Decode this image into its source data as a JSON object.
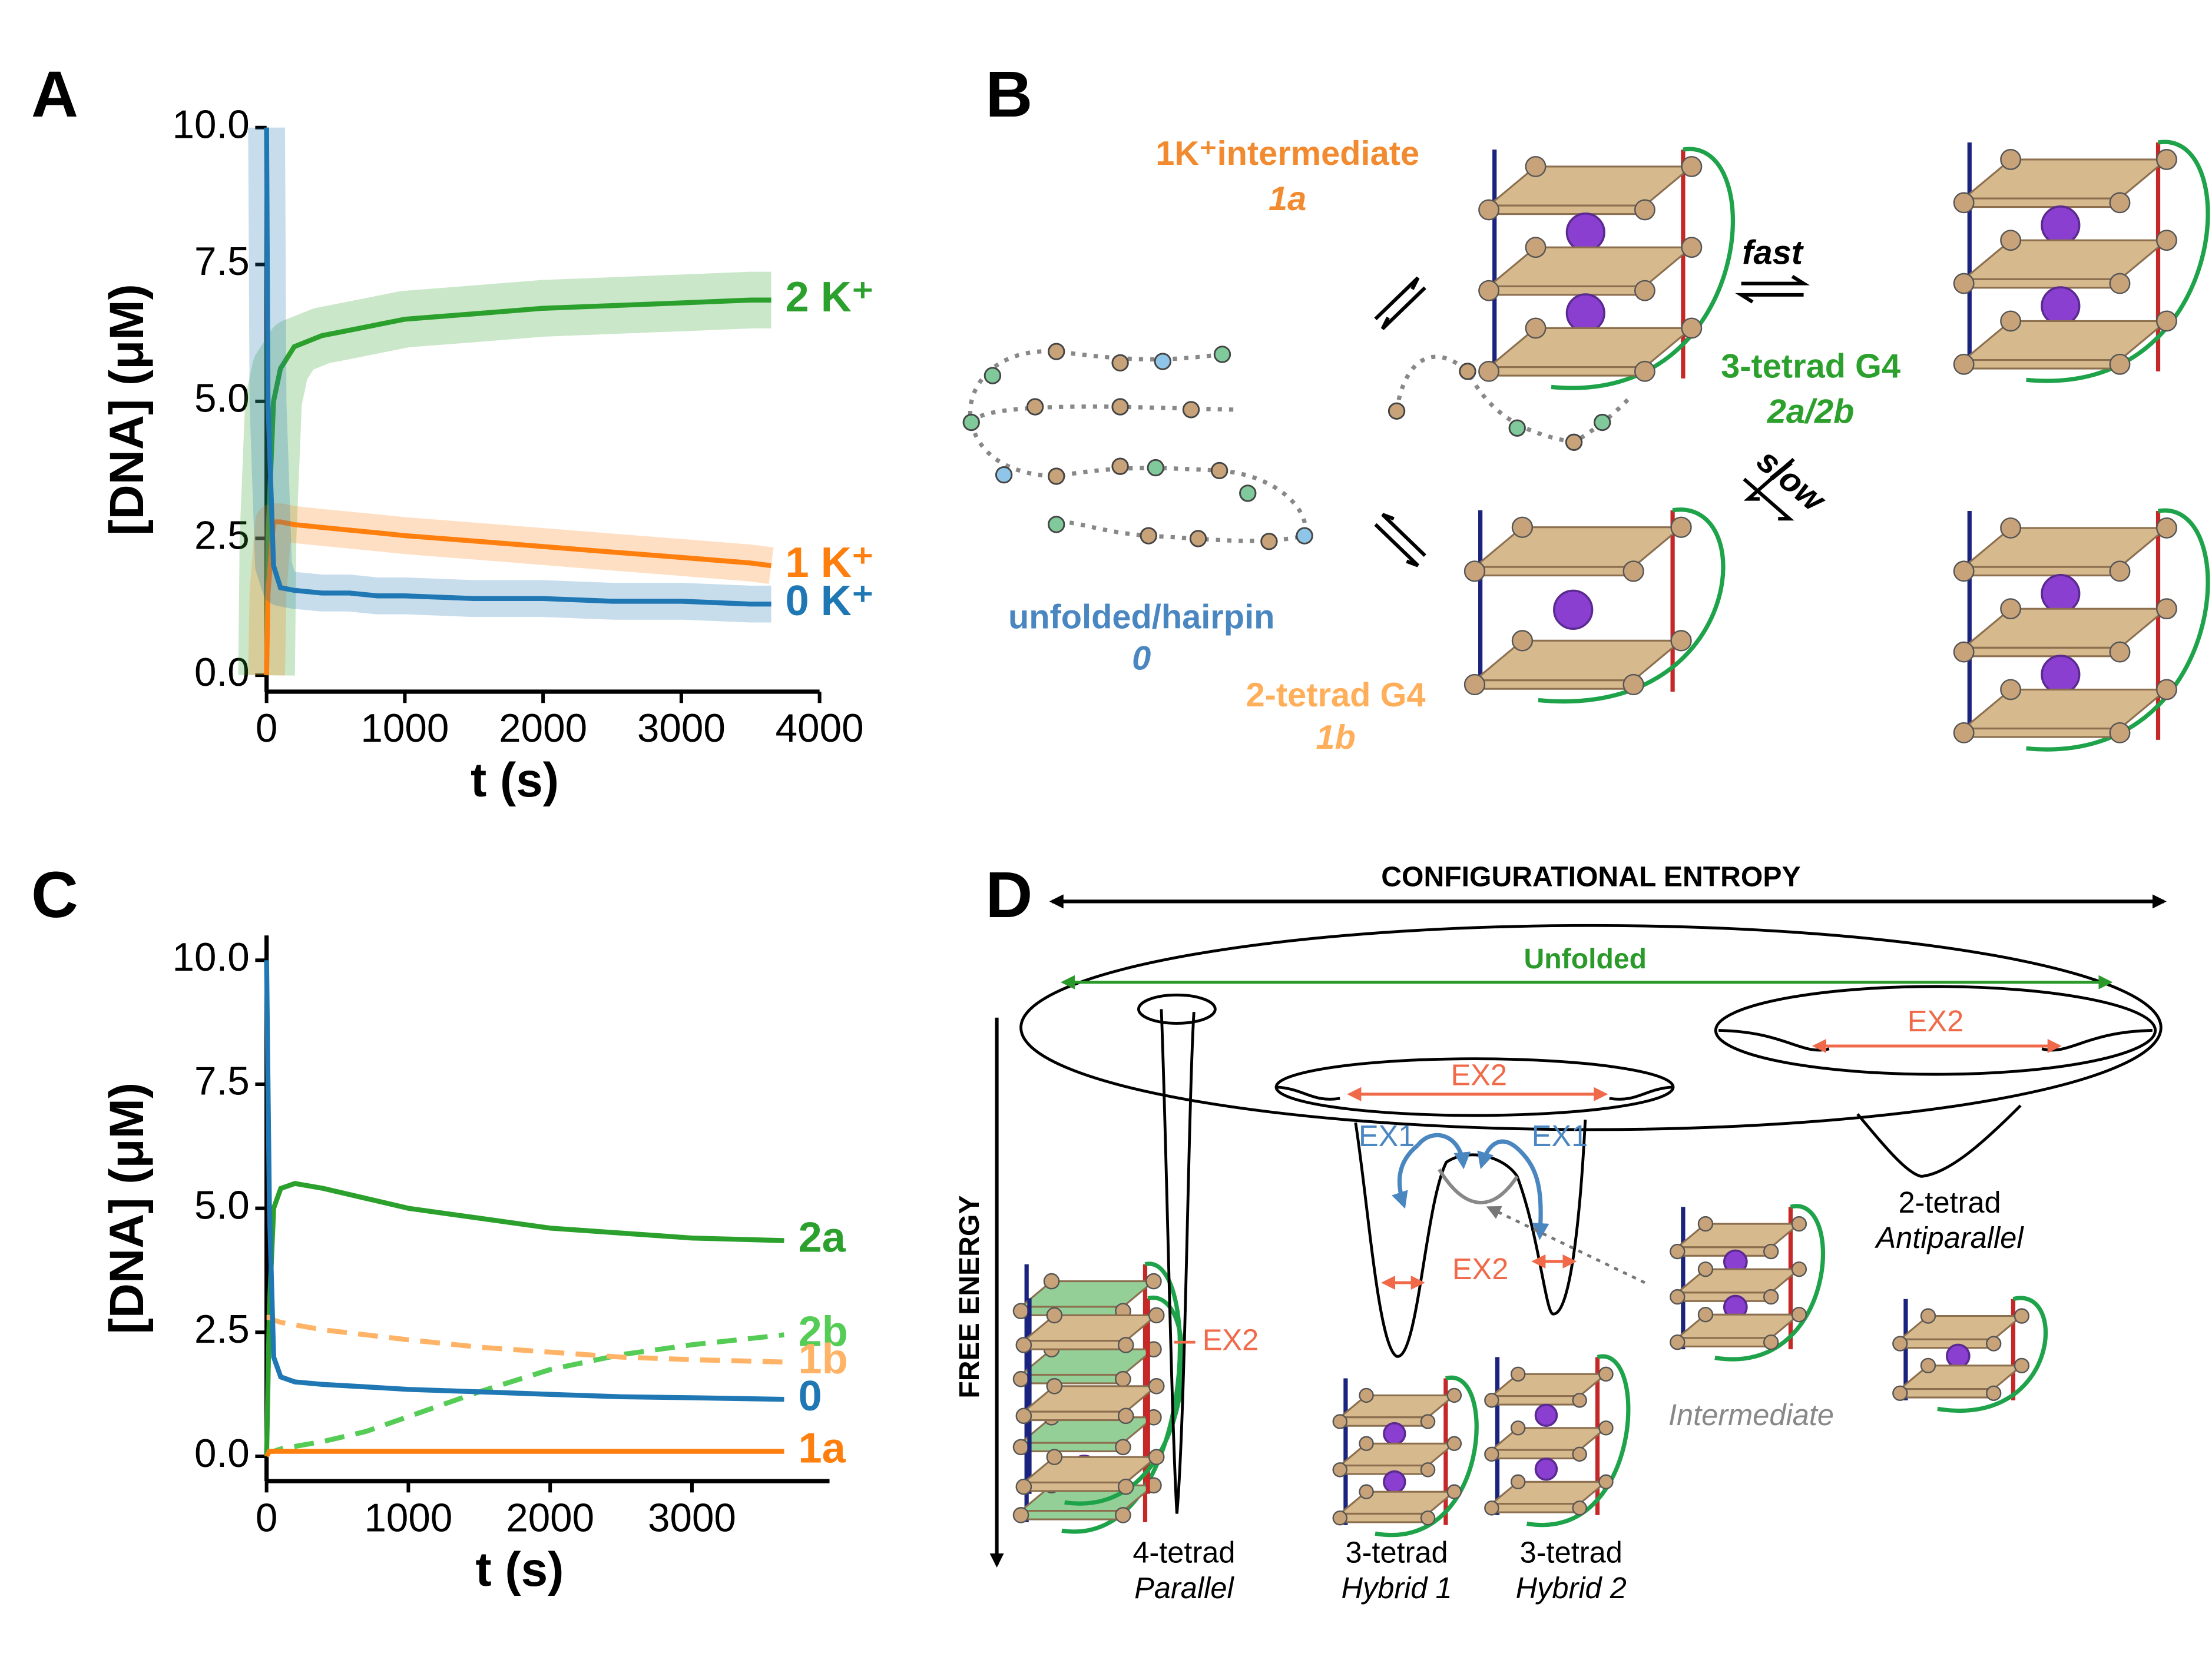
{
  "panel_labels": [
    "A",
    "B",
    "C",
    "D"
  ],
  "chart_data": [
    {
      "type": "line",
      "xlabel": "t (s)",
      "ylabel": "[DNA] (μM)",
      "x": [
        0,
        10,
        50,
        100,
        200,
        400,
        600,
        800,
        1000,
        1500,
        2000,
        2500,
        3000,
        3500,
        3650
      ],
      "series": [
        {
          "name": "2 K⁺",
          "color": "#2ca02c",
          "scatter": true,
          "values": [
            0,
            2.5,
            5.0,
            5.6,
            6.0,
            6.2,
            6.3,
            6.4,
            6.5,
            6.6,
            6.7,
            6.75,
            6.8,
            6.85,
            6.85
          ]
        },
        {
          "name": "1 K⁺",
          "color": "#ff7f0e",
          "scatter": true,
          "values": [
            0,
            1.5,
            2.8,
            2.8,
            2.75,
            2.7,
            2.65,
            2.6,
            2.55,
            2.45,
            2.35,
            2.25,
            2.15,
            2.05,
            2.0
          ]
        },
        {
          "name": "0 K⁺",
          "color": "#1f77b4",
          "scatter": true,
          "values": [
            10,
            5,
            2.0,
            1.6,
            1.55,
            1.5,
            1.5,
            1.45,
            1.45,
            1.4,
            1.4,
            1.35,
            1.35,
            1.3,
            1.3
          ]
        }
      ],
      "xlim": [
        0,
        4000
      ],
      "xticks": [
        0,
        1000,
        2000,
        3000,
        4000
      ],
      "ylim": [
        -0.3,
        10
      ],
      "yticks": [
        {
          "value": 0,
          "label": "0.0"
        },
        2.5,
        {
          "value": 5,
          "label": "5.0"
        },
        7.5,
        {
          "value": 10,
          "label": "10.0"
        }
      ]
    },
    {
      "type": "line",
      "xlabel": "t (s)",
      "ylabel": "[DNA] (μM)",
      "x": [
        0,
        20,
        50,
        100,
        200,
        400,
        700,
        1000,
        1500,
        2000,
        2500,
        3000,
        3650
      ],
      "series": [
        {
          "name": "2a",
          "color": "#2ca02c",
          "dash": false,
          "values": [
            0,
            3,
            5,
            5.4,
            5.5,
            5.4,
            5.2,
            5.0,
            4.8,
            4.6,
            4.5,
            4.4,
            4.35
          ]
        },
        {
          "name": "2b",
          "color": "#55cc55",
          "dash": true,
          "values": [
            0,
            0.1,
            0.1,
            0.15,
            0.2,
            0.3,
            0.5,
            0.8,
            1.3,
            1.75,
            2.05,
            2.25,
            2.45
          ]
        },
        {
          "name": "1b",
          "color": "#ffb366",
          "dash": true,
          "values": [
            2.8,
            2.8,
            2.75,
            2.7,
            2.65,
            2.55,
            2.45,
            2.35,
            2.2,
            2.1,
            2.0,
            1.95,
            1.9
          ]
        },
        {
          "name": "0",
          "color": "#1f77b4",
          "dash": false,
          "values": [
            10,
            5,
            2.0,
            1.6,
            1.5,
            1.45,
            1.4,
            1.35,
            1.3,
            1.25,
            1.2,
            1.18,
            1.15
          ]
        },
        {
          "name": "1a",
          "color": "#ff7f0e",
          "dash": false,
          "values": [
            0,
            0.1,
            0.1,
            0.1,
            0.1,
            0.1,
            0.1,
            0.1,
            0.1,
            0.1,
            0.1,
            0.1,
            0.1
          ]
        }
      ],
      "xlim": [
        0,
        3970
      ],
      "xticks": [
        0,
        1000,
        2000,
        3000
      ],
      "ylim": [
        -0.5,
        10.5
      ],
      "yticks": [
        {
          "value": 0,
          "label": "0.0"
        },
        2.5,
        {
          "value": 5,
          "label": "5.0"
        },
        7.5,
        {
          "value": 10,
          "label": "10.0"
        }
      ]
    }
  ],
  "diagram_b": {
    "intermediate": {
      "label": "1K⁺intermediate",
      "id": "1a"
    },
    "unfolded": {
      "label": "unfolded/hairpin",
      "id": "0"
    },
    "two_tetrad": {
      "label": "2-tetrad G4",
      "id": "1b"
    },
    "three_tetrad": {
      "label": "3-tetrad G4",
      "id": "2a/2b"
    },
    "fast": "fast",
    "slow": "slow"
  },
  "diagram_d": {
    "x_axis": "CONFIGURATIONAL ENTROPY",
    "y_axis": "FREE ENERGY",
    "unfolded": "Unfolded",
    "ex2": [
      "EX2",
      "EX2",
      "EX2",
      "EX2"
    ],
    "ex1": [
      "EX1",
      "EX1"
    ],
    "states": [
      {
        "label": "4-tetrad",
        "topology": "Parallel"
      },
      {
        "label": "3-tetrad",
        "topology": "Hybrid 1"
      },
      {
        "label": "3-tetrad",
        "topology": "Hybrid 2"
      },
      {
        "label": "2-tetrad",
        "topology": "Antiparallel"
      }
    ],
    "intermediate": "Intermediate"
  }
}
